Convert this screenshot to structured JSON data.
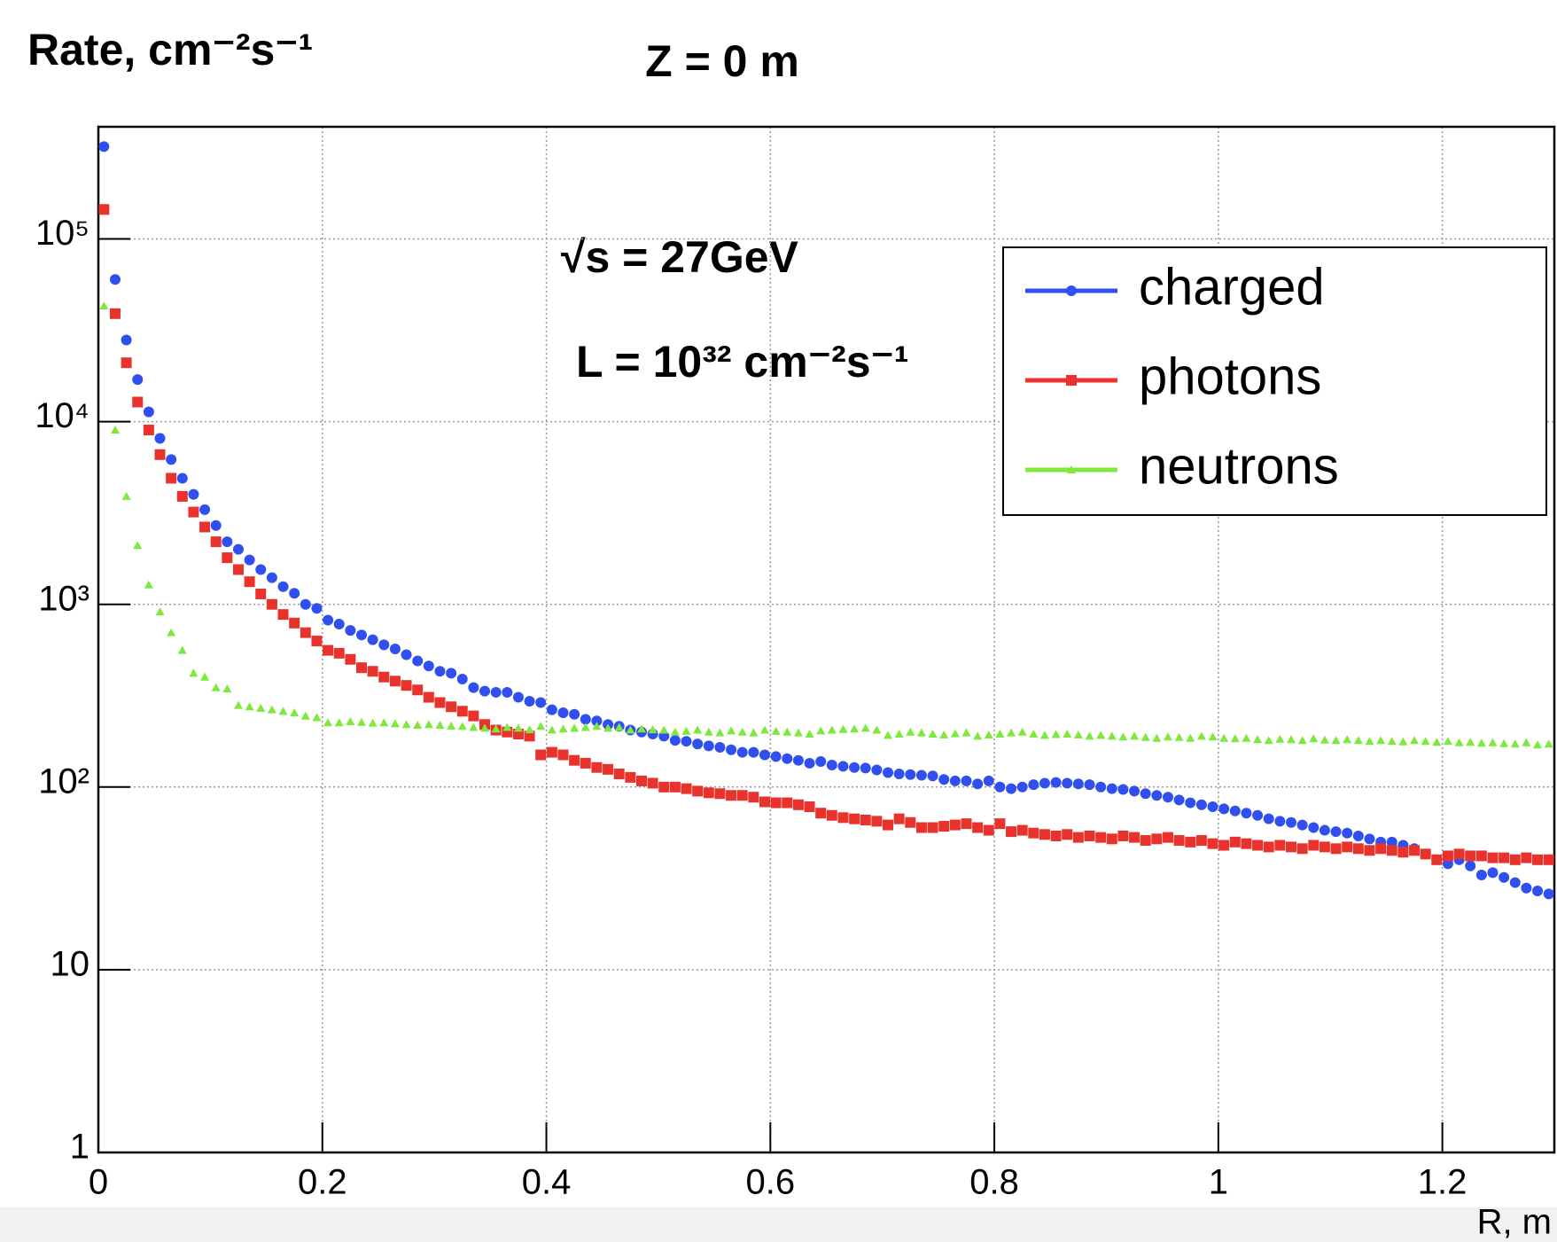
{
  "chart_data": {
    "type": "scatter",
    "title": "Rate, cm⁻²s⁻¹",
    "subtitle": "Z = 0 m",
    "x_label": "R, m",
    "annotations": [
      "√s = 27GeV",
      "L = 10³² cm⁻²s⁻¹"
    ],
    "log_y": true,
    "grid": true,
    "legend": "top-right",
    "xlim": [
      0,
      1.3
    ],
    "xticks": [
      0,
      0.2,
      0.4,
      0.6,
      0.8,
      1,
      1.2
    ],
    "ylim": [
      1,
      411000
    ],
    "yticks": [
      1,
      10,
      {
        "value": 100,
        "label": "10²"
      },
      {
        "value": 1000,
        "label": "10³"
      },
      {
        "value": 10000,
        "label": "10⁴"
      },
      {
        "value": 100000,
        "label": "10⁵"
      }
    ],
    "x": [
      0.005,
      0.015,
      0.025,
      0.035,
      0.045,
      0.055,
      0.065,
      0.075,
      0.085,
      0.095,
      0.105,
      0.115,
      0.125,
      0.135,
      0.145,
      0.155,
      0.165,
      0.175,
      0.185,
      0.195,
      0.205,
      0.215,
      0.225,
      0.235,
      0.245,
      0.255,
      0.265,
      0.275,
      0.285,
      0.295,
      0.305,
      0.315,
      0.325,
      0.335,
      0.345,
      0.355,
      0.365,
      0.375,
      0.385,
      0.395,
      0.405,
      0.415,
      0.425,
      0.435,
      0.445,
      0.455,
      0.465,
      0.475,
      0.485,
      0.495,
      0.505,
      0.515,
      0.525,
      0.535,
      0.545,
      0.555,
      0.565,
      0.575,
      0.585,
      0.595,
      0.605,
      0.615,
      0.625,
      0.635,
      0.645,
      0.655,
      0.665,
      0.675,
      0.685,
      0.695,
      0.705,
      0.715,
      0.725,
      0.735,
      0.745,
      0.755,
      0.765,
      0.775,
      0.785,
      0.795,
      0.805,
      0.815,
      0.825,
      0.835,
      0.845,
      0.855,
      0.865,
      0.875,
      0.885,
      0.895,
      0.905,
      0.915,
      0.925,
      0.935,
      0.945,
      0.955,
      0.965,
      0.975,
      0.985,
      0.995,
      1.005,
      1.015,
      1.025,
      1.035,
      1.045,
      1.055,
      1.065,
      1.075,
      1.085,
      1.095,
      1.105,
      1.115,
      1.125,
      1.135,
      1.145,
      1.155,
      1.165,
      1.175,
      1.185,
      1.195,
      1.205,
      1.215,
      1.225,
      1.235,
      1.245,
      1.255,
      1.265,
      1.275,
      1.285,
      1.295
    ],
    "series": [
      {
        "name": "charged",
        "color": "#2f4ff0",
        "marker": "circle",
        "values": [
          320000,
          60000,
          28000,
          17000,
          11300,
          8100,
          6200,
          4900,
          4000,
          3300,
          2700,
          2200,
          2000,
          1750,
          1550,
          1400,
          1250,
          1150,
          1000,
          950,
          820,
          780,
          720,
          680,
          640,
          600,
          570,
          530,
          490,
          460,
          430,
          420,
          390,
          350,
          335,
          330,
          330,
          310,
          295,
          290,
          265,
          255,
          250,
          235,
          230,
          220,
          215,
          205,
          200,
          195,
          190,
          180,
          178,
          172,
          168,
          165,
          160,
          155,
          155,
          150,
          147,
          143,
          140,
          135,
          138,
          132,
          130,
          128,
          127,
          124,
          120,
          118,
          117,
          116,
          115,
          110,
          108,
          108,
          104,
          108,
          100,
          98,
          100,
          103,
          105,
          106,
          105,
          104,
          103,
          100,
          98,
          97,
          95,
          92,
          90,
          88,
          85,
          82,
          80,
          78,
          76,
          74,
          72,
          70,
          67,
          65,
          64,
          62,
          60,
          58,
          57,
          56,
          54,
          52,
          50,
          50,
          48,
          46,
          43,
          40,
          38,
          40,
          37,
          33,
          34,
          32,
          30,
          28,
          27,
          26
        ]
      },
      {
        "name": "photons",
        "color": "#e8322b",
        "marker": "square",
        "values": [
          145000,
          39000,
          21000,
          12800,
          9000,
          6600,
          4900,
          3900,
          3200,
          2650,
          2200,
          1800,
          1550,
          1330,
          1140,
          1000,
          880,
          790,
          700,
          630,
          560,
          540,
          500,
          450,
          430,
          400,
          380,
          360,
          340,
          310,
          290,
          275,
          260,
          245,
          220,
          205,
          200,
          195,
          190,
          150,
          155,
          150,
          140,
          135,
          128,
          125,
          118,
          113,
          108,
          105,
          100,
          100,
          98,
          95,
          93,
          92,
          90,
          90,
          88,
          83,
          82,
          82,
          80,
          78,
          72,
          70,
          68,
          67,
          66,
          65,
          62,
          67,
          64,
          60,
          60,
          61,
          62,
          63,
          60,
          58,
          63,
          57,
          58,
          56,
          55,
          54,
          55,
          53,
          54,
          53,
          52,
          54,
          53,
          51,
          52,
          53,
          51,
          50,
          51,
          49,
          48,
          50,
          49,
          48,
          47,
          48,
          47,
          46,
          48,
          47,
          46,
          47,
          46,
          45,
          46,
          45,
          44,
          45,
          43,
          40,
          42,
          43,
          42,
          42,
          41,
          41,
          40,
          41,
          40,
          40
        ]
      },
      {
        "name": "neutrons",
        "color": "#7ee83c",
        "marker": "triangle",
        "values": [
          43000,
          9000,
          3900,
          2100,
          1280,
          910,
          700,
          560,
          420,
          400,
          350,
          345,
          280,
          275,
          270,
          265,
          260,
          255,
          245,
          240,
          225,
          225,
          228,
          226,
          224,
          225,
          222,
          220,
          218,
          220,
          218,
          216,
          215,
          212,
          210,
          208,
          212,
          210,
          206,
          215,
          205,
          208,
          210,
          212,
          215,
          210,
          212,
          205,
          208,
          206,
          205,
          200,
          202,
          205,
          200,
          198,
          203,
          200,
          198,
          205,
          202,
          200,
          198,
          195,
          203,
          205,
          207,
          208,
          210,
          205,
          192,
          195,
          200,
          198,
          195,
          193,
          196,
          198,
          190,
          193,
          195,
          198,
          200,
          195,
          192,
          194,
          195,
          193,
          190,
          192,
          190,
          188,
          190,
          187,
          185,
          188,
          187,
          185,
          190,
          188,
          185,
          184,
          185,
          182,
          180,
          183,
          182,
          180,
          184,
          181,
          180,
          182,
          180,
          178,
          180,
          178,
          177,
          180,
          178,
          176,
          178,
          175,
          176,
          174,
          175,
          173,
          172,
          175,
          170,
          172
        ]
      }
    ]
  }
}
